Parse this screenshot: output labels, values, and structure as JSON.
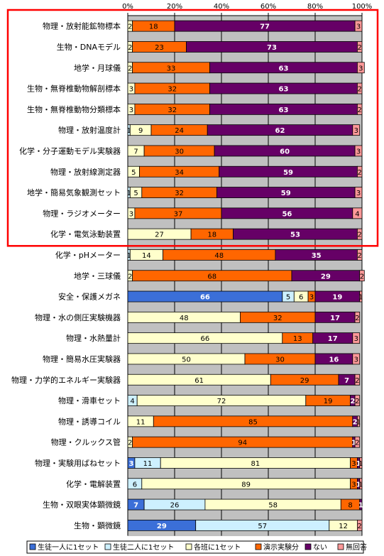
{
  "chart_data": {
    "type": "bar",
    "orientation": "horizontal",
    "stacked": true,
    "percent_scale": true,
    "xlim": [
      0,
      100
    ],
    "x_ticks": [
      "0%",
      "20%",
      "40%",
      "60%",
      "80%",
      "100%"
    ],
    "grid": true,
    "legend_position": "bottom",
    "categories": [
      "物理・放射能鉱物標本",
      "生物・DNAモデル",
      "地学・月球儀",
      "生物・無脊椎動物解剖標本",
      "生物・無脊椎動物分類標本",
      "物理・放射温度計",
      "化学・分子運動モデル実験器",
      "物理・放射線測定器",
      "地学・簡易気象観測セット",
      "物理・ラジオメーター",
      "化学・電気泳動装置",
      "化学・pHメーター",
      "地学・三球儀",
      "安全・保護メガネ",
      "物理・水の側圧実験機器",
      "物理・水熱量計",
      "物理・簡易水圧実験器",
      "物理・力学的エネルギー実験器",
      "物理・滑車セット",
      "物理・誘導コイル",
      "物理・クルックス管",
      "物理・実験用ばねセット",
      "化学・電解装置",
      "生物・双眼実体顕微鏡",
      "生物・顕微鏡"
    ],
    "series": [
      {
        "name": "生徒一人に1セット",
        "color": "#3b6fd8",
        "values": [
          0,
          0,
          0,
          0,
          0,
          0,
          0,
          0,
          0,
          0,
          0,
          0,
          0,
          66,
          0,
          0,
          0,
          0,
          0,
          0,
          0,
          3,
          0,
          7,
          29
        ]
      },
      {
        "name": "生徒二人に1セット",
        "color": "#cdf0ff",
        "values": [
          0,
          0,
          0,
          0,
          0,
          1,
          0,
          0,
          1,
          0,
          0,
          1,
          0,
          5,
          0,
          0,
          0,
          0,
          4,
          0,
          0,
          11,
          6,
          26,
          57
        ]
      },
      {
        "name": "各班に1セット",
        "color": "#ffffcc",
        "values": [
          2,
          2,
          2,
          3,
          3,
          9,
          7,
          5,
          5,
          3,
          27,
          14,
          2,
          6,
          48,
          66,
          50,
          61,
          72,
          11,
          2,
          81,
          89,
          58,
          12
        ]
      },
      {
        "name": "演示実験分",
        "color": "#ff6600",
        "values": [
          18,
          23,
          33,
          32,
          32,
          24,
          30,
          34,
          32,
          37,
          18,
          48,
          68,
          3,
          32,
          13,
          30,
          29,
          19,
          85,
          94,
          3,
          3,
          8,
          0
        ]
      },
      {
        "name": "ない",
        "color": "#660066",
        "values": [
          77,
          73,
          63,
          63,
          63,
          62,
          60,
          59,
          59,
          56,
          53,
          35,
          29,
          19,
          17,
          17,
          16,
          7,
          2,
          2,
          1,
          1,
          1,
          1,
          0
        ]
      },
      {
        "name": "無回答",
        "color": "#ff9999",
        "values": [
          3,
          2,
          3,
          2,
          2,
          3,
          3,
          2,
          3,
          4,
          2,
          2,
          2,
          1,
          2,
          3,
          3,
          2,
          2,
          1,
          2,
          1,
          1,
          0,
          2
        ]
      }
    ],
    "highlight_box": {
      "from_category": 0,
      "to_category": 10,
      "color": "#ff0000"
    }
  }
}
